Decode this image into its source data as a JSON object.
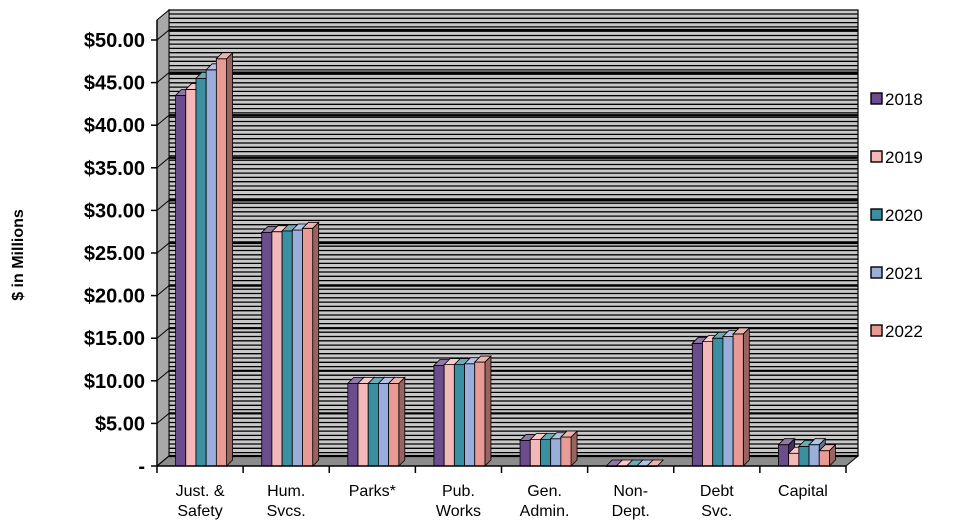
{
  "chart_data": {
    "type": "bar",
    "ylabel": "$ in Millions",
    "ylim": [
      0,
      50
    ],
    "yticks": [
      0,
      5,
      10,
      15,
      20,
      25,
      30,
      35,
      40,
      45,
      50
    ],
    "ytick_labels": [
      "-",
      "$5.00",
      "$10.00",
      "$15.00",
      "$20.00",
      "$25.00",
      "$30.00",
      "$35.00",
      "$40.00",
      "$45.00",
      "$50.00"
    ],
    "categories": [
      [
        "Just. &",
        "Safety"
      ],
      [
        "Hum.",
        "Svcs."
      ],
      [
        "Parks*"
      ],
      [
        "Pub.",
        "Works"
      ],
      [
        "Gen.",
        "Admin."
      ],
      [
        "Non-",
        "Dept."
      ],
      [
        "Debt",
        "Svc."
      ],
      [
        "Capital"
      ]
    ],
    "grid": true,
    "legend_position": "right",
    "series": [
      {
        "name": "2018",
        "color": "#6b4c8c",
        "values": [
          43.5,
          27.4,
          9.7,
          11.8,
          3.0,
          0.0,
          14.4,
          2.5
        ]
      },
      {
        "name": "2019",
        "color": "#f4b8b8",
        "values": [
          44.2,
          27.5,
          9.7,
          11.9,
          3.1,
          0.0,
          14.6,
          1.5
        ]
      },
      {
        "name": "2020",
        "color": "#3a8fa0",
        "values": [
          45.5,
          27.6,
          9.7,
          11.9,
          3.1,
          0.0,
          15.0,
          2.3
        ]
      },
      {
        "name": "2021",
        "color": "#9aaedc",
        "values": [
          46.5,
          27.7,
          9.7,
          12.0,
          3.2,
          0.0,
          15.2,
          2.5
        ]
      },
      {
        "name": "2022",
        "color": "#e89a94",
        "values": [
          47.8,
          27.9,
          9.7,
          12.2,
          3.4,
          0.0,
          15.5,
          1.8
        ]
      }
    ]
  }
}
